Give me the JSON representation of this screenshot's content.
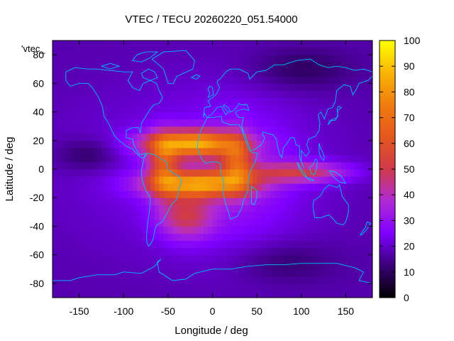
{
  "chart_data": {
    "type": "heatmap",
    "title": "VTEC / TECU 20260220_051.54000",
    "xlabel": "Longitude / deg",
    "ylabel": "Latitude / deg",
    "xlim": [
      -180,
      180
    ],
    "ylim": [
      -90,
      90
    ],
    "x_ticks": [
      -150,
      -100,
      -50,
      0,
      50,
      100,
      150
    ],
    "y_ticks": [
      -80,
      -60,
      -40,
      -20,
      0,
      20,
      40,
      60,
      80
    ],
    "colorbar": {
      "range": [
        0,
        100
      ],
      "ticks": [
        0,
        10,
        20,
        30,
        40,
        50,
        60,
        70,
        80,
        90,
        100
      ],
      "colors": [
        "#000000",
        "#3a0079",
        "#7f00ff",
        "#b02bd6",
        "#cf3a4a",
        "#e4571d",
        "#f07c10",
        "#f8b506",
        "#ffff00"
      ]
    },
    "legend": {
      "label": "'vtec_",
      "position": "top-left"
    },
    "coastlines_color": "#00bfff",
    "features": [
      {
        "name": "equatorial anomaly north crest",
        "lon_range": [
          -70,
          50
        ],
        "lat": 18,
        "peak_vtec": 88
      },
      {
        "name": "equatorial anomaly south crest",
        "lon_range": [
          -75,
          40
        ],
        "lat": -10,
        "peak_vtec": 85
      },
      {
        "name": "southern extension",
        "lon_range": [
          -60,
          0
        ],
        "lat_range": [
          -45,
          -20
        ],
        "vtec": 55
      },
      {
        "name": "eastern tongue",
        "lon_range": [
          60,
          140
        ],
        "lat_range": [
          -8,
          5
        ],
        "vtec": 50
      },
      {
        "name": "background",
        "vtec": 20
      }
    ]
  }
}
